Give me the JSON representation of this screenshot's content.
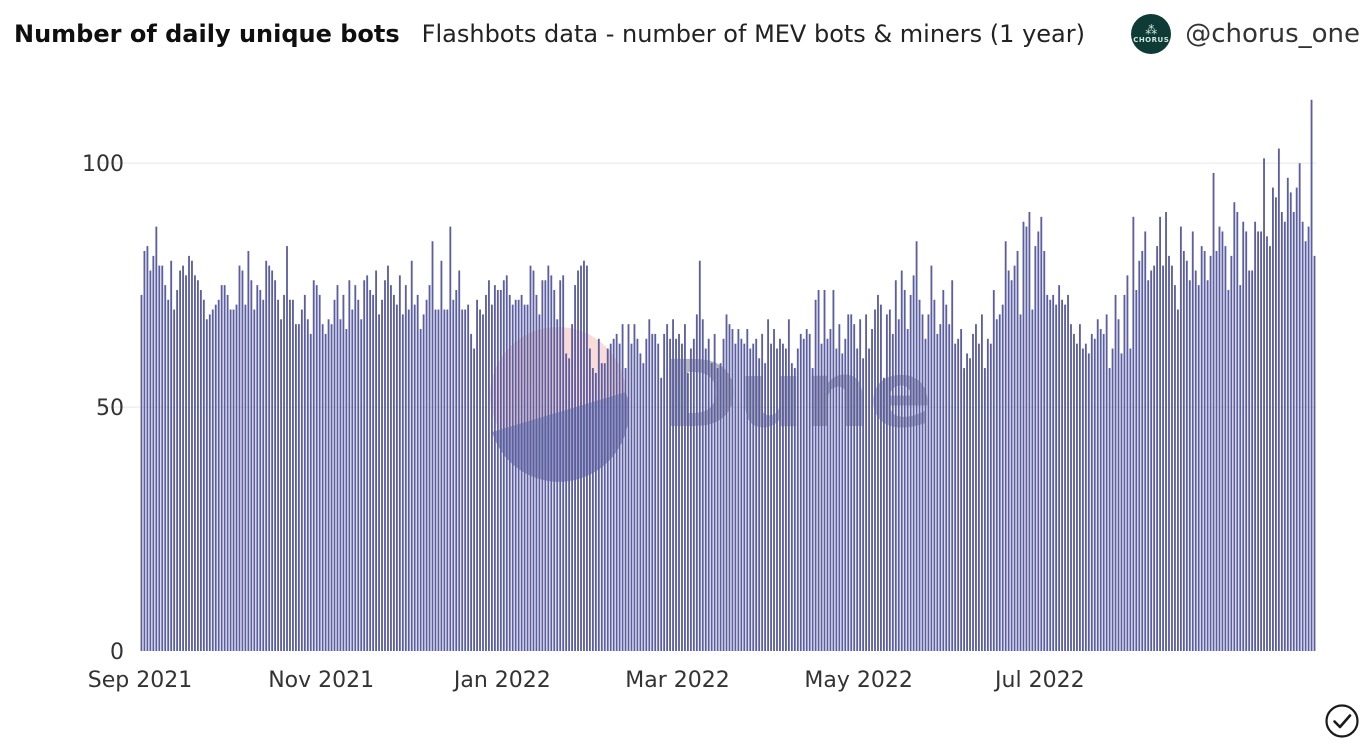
{
  "header": {
    "title": "Number of daily unique bots",
    "subtitle": "Flashbots data - number of MEV bots & miners (1 year)",
    "handle": "@chorus_one",
    "logo_text": "CHORUS",
    "logo_icon": "chorus-logo-icon"
  },
  "watermark": {
    "text": "Dune"
  },
  "colors": {
    "bar": "#5b5fa1",
    "grid": "#e6e6e6",
    "axis_text": "#333333",
    "logo_bg": "#0f3b36"
  },
  "chart_data": {
    "type": "bar",
    "title": "Number of daily unique bots",
    "subtitle": "Flashbots data - number of MEV bots & miners (1 year)",
    "xlabel": "",
    "ylabel": "",
    "ylim": [
      0,
      115
    ],
    "y_ticks": [
      0,
      50,
      100
    ],
    "x_ticks": [
      {
        "label": "Sep 2021",
        "day": 0
      },
      {
        "label": "Nov 2021",
        "day": 61
      },
      {
        "label": "Jan 2022",
        "day": 122
      },
      {
        "label": "Mar 2022",
        "day": 181
      },
      {
        "label": "May 2022",
        "day": 242
      },
      {
        "label": "Jul 2022",
        "day": 303
      }
    ],
    "grid": "horizontal",
    "values": [
      73,
      82,
      83,
      78,
      81,
      87,
      79,
      79,
      75,
      72,
      80,
      70,
      74,
      78,
      79,
      77,
      81,
      80,
      77,
      76,
      74,
      72,
      68,
      69,
      70,
      71,
      72,
      75,
      75,
      73,
      70,
      70,
      71,
      79,
      78,
      71,
      82,
      76,
      70,
      75,
      74,
      72,
      80,
      79,
      78,
      76,
      72,
      68,
      73,
      83,
      72,
      72,
      67,
      67,
      70,
      73,
      68,
      65,
      76,
      75,
      73,
      67,
      65,
      68,
      67,
      72,
      75,
      68,
      73,
      66,
      76,
      70,
      75,
      72,
      68,
      76,
      77,
      74,
      73,
      78,
      69,
      72,
      76,
      79,
      75,
      73,
      71,
      77,
      69,
      75,
      70,
      80,
      71,
      73,
      66,
      69,
      72,
      75,
      84,
      70,
      70,
      80,
      70,
      70,
      87,
      72,
      74,
      78,
      70,
      70,
      71,
      65,
      62,
      72,
      70,
      69,
      73,
      76,
      71,
      75,
      74,
      74,
      76,
      77,
      73,
      71,
      72,
      72,
      73,
      71,
      71,
      79,
      78,
      73,
      69,
      76,
      76,
      79,
      77,
      74,
      68,
      76,
      77,
      61,
      60,
      67,
      75,
      78,
      79,
      80,
      79,
      62,
      58,
      57,
      64,
      59,
      59,
      62,
      63,
      64,
      65,
      63,
      67,
      58,
      67,
      63,
      67,
      64,
      61,
      59,
      64,
      68,
      65,
      65,
      63,
      56,
      65,
      67,
      64,
      68,
      64,
      65,
      63,
      67,
      57,
      62,
      64,
      69,
      80,
      68,
      62,
      64,
      59,
      65,
      58,
      59,
      64,
      69,
      67,
      66,
      63,
      66,
      64,
      63,
      66,
      62,
      63,
      64,
      60,
      65,
      59,
      68,
      63,
      66,
      62,
      64,
      63,
      62,
      68,
      59,
      58,
      62,
      65,
      64,
      66,
      65,
      58,
      72,
      74,
      63,
      74,
      64,
      66,
      74,
      62,
      67,
      61,
      64,
      69,
      69,
      67,
      62,
      68,
      60,
      69,
      62,
      66,
      70,
      73,
      71,
      56,
      69,
      70,
      65,
      76,
      68,
      78,
      74,
      66,
      73,
      77,
      84,
      72,
      69,
      64,
      69,
      79,
      72,
      65,
      67,
      74,
      71,
      67,
      76,
      63,
      64,
      66,
      58,
      61,
      60,
      65,
      67,
      63,
      69,
      58,
      64,
      63,
      74,
      68,
      69,
      71,
      84,
      78,
      76,
      79,
      82,
      69,
      88,
      87,
      90,
      70,
      83,
      86,
      89,
      82,
      73,
      72,
      73,
      71,
      75,
      72,
      71,
      73,
      67,
      65,
      63,
      67,
      62,
      63,
      61,
      65,
      64,
      68,
      66,
      65,
      69,
      58,
      62,
      73,
      68,
      61,
      73,
      77,
      62,
      89,
      74,
      80,
      82,
      86,
      76,
      78,
      79,
      83,
      89,
      79,
      90,
      81,
      79,
      75,
      70,
      87,
      82,
      80,
      76,
      86,
      78,
      75,
      83,
      82,
      76,
      81,
      98,
      82,
      87,
      86,
      83,
      74,
      81,
      92,
      90,
      75,
      88,
      86,
      78,
      78,
      88,
      86,
      86,
      101,
      85,
      83,
      95,
      93,
      103,
      90,
      88,
      97,
      94,
      90,
      95,
      100,
      88,
      84,
      87,
      113,
      81
    ],
    "values_note_dropped": null
  }
}
